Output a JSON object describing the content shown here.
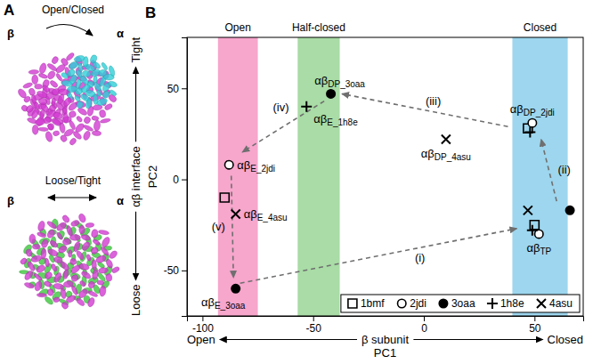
{
  "panel_a": {
    "label": "A",
    "images": [
      {
        "title": "Open/Closed",
        "left": "β",
        "right": "α"
      },
      {
        "title": "Loose/Tight",
        "left": "β",
        "right": "α"
      }
    ]
  },
  "chart_data": {
    "type": "scatter",
    "panel_label": "B",
    "xlabel": "β subunit",
    "xlabel_secondary": "PC1",
    "xlabel_low": "Open",
    "xlabel_high": "Closed",
    "ylabel": "αβ interface",
    "ylabel_secondary": "PC2",
    "ylabel_low": "Loose",
    "ylabel_high": "Tight",
    "xlim": [
      -107,
      72
    ],
    "ylim": [
      -75,
      78
    ],
    "xticks": [
      -100,
      -50,
      0,
      50
    ],
    "yticks": [
      -50,
      0,
      50
    ],
    "legend": "lower right",
    "regions": [
      {
        "label": "Open",
        "x0": -93,
        "x1": -75,
        "color": "#f7a6cc"
      },
      {
        "label": "Half-closed",
        "x0": -57,
        "x1": -38,
        "color": "#a9dca6"
      },
      {
        "label": "Closed",
        "x0": 40,
        "x1": 65,
        "color": "#9dd6ee"
      }
    ],
    "series": [
      {
        "name": "1bmf",
        "marker": "square",
        "color": "#000000",
        "x": [
          -90,
          50,
          47
        ],
        "values": [
          -10,
          -25,
          28
        ],
        "labels": [
          null,
          null,
          null
        ]
      },
      {
        "name": "2jdi",
        "marker": "circle",
        "color": "#000000",
        "x": [
          -88,
          52,
          49
        ],
        "values": [
          8,
          -30,
          31
        ],
        "labels": [
          {
            "text": "αβ",
            "sub": "E_2jdi"
          },
          {
            "text": "αβ",
            "sub": "TP"
          },
          {
            "text": "αβ",
            "sub": "DP_2jdi"
          }
        ]
      },
      {
        "name": "3oaa",
        "marker": "filled-circle",
        "color": "#000000",
        "x": [
          -85,
          66,
          -42
        ],
        "values": [
          -60,
          -17,
          47
        ],
        "labels": [
          {
            "text": "αβ",
            "sub": "E_3oaa"
          },
          null,
          {
            "text": "αβ",
            "sub": "DP_3oaa"
          }
        ]
      },
      {
        "name": "1h8e",
        "marker": "plus",
        "color": "#000000",
        "x": [
          -53,
          49,
          48
        ],
        "values": [
          40,
          -28,
          26
        ],
        "labels": [
          {
            "text": "αβ",
            "sub": "E_1h8e"
          },
          null,
          null
        ]
      },
      {
        "name": "4asu",
        "marker": "cross",
        "color": "#000000",
        "x": [
          -85,
          47,
          10
        ],
        "values": [
          -19,
          -17,
          22
        ],
        "labels": [
          {
            "text": "αβ",
            "sub": "E_4asu"
          },
          null,
          {
            "text": "αβ",
            "sub": "DP_4asu"
          }
        ]
      }
    ],
    "arrows": [
      {
        "label": "(i)",
        "from": [
          -83,
          -57
        ],
        "to": [
          42,
          -27
        ]
      },
      {
        "label": "(ii)",
        "from": [
          60,
          -12
        ],
        "to": [
          53,
          22
        ]
      },
      {
        "label": "(iii)",
        "from": [
          38,
          29
        ],
        "to": [
          -37,
          47
        ]
      },
      {
        "label": "(iv)",
        "from": [
          -45,
          43
        ],
        "to": [
          -82,
          15
        ]
      },
      {
        "label": "(v)",
        "from": [
          -87,
          2
        ],
        "to": [
          -86,
          -54
        ]
      }
    ]
  }
}
